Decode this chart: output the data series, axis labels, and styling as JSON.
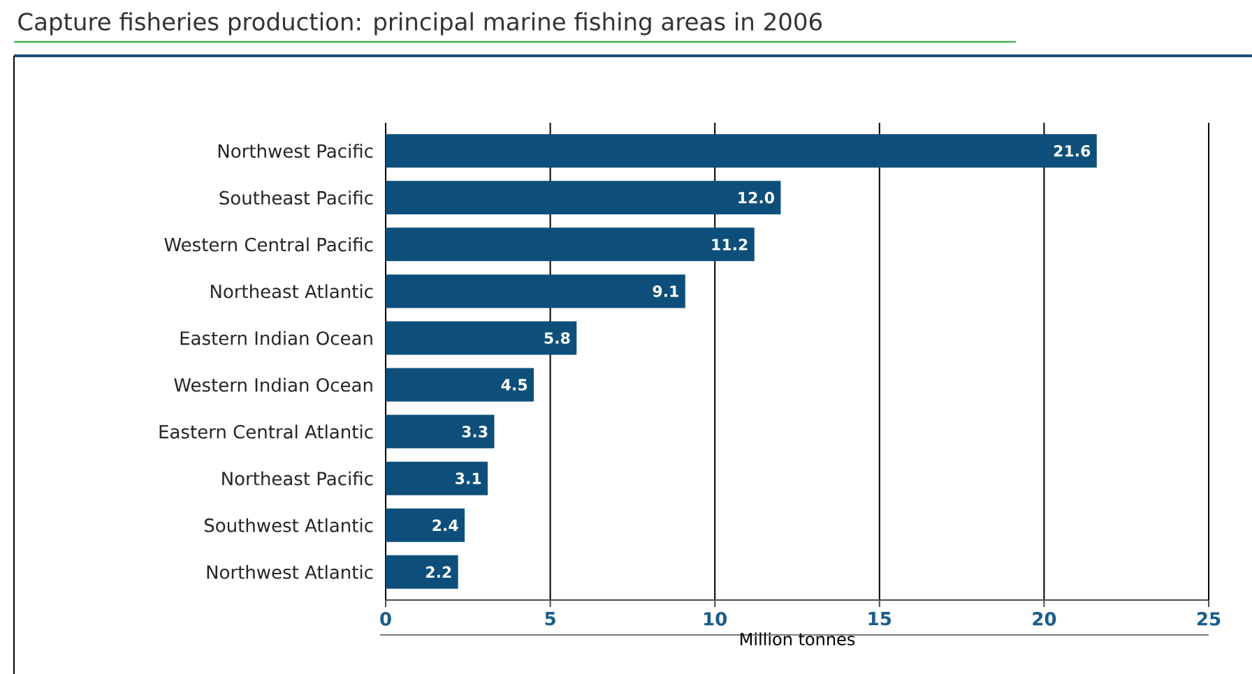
{
  "chart_data": {
    "type": "bar",
    "orientation": "horizontal",
    "title": "Capture fisheries production: principal marine fishing areas in 2006",
    "xlabel": "Million tonnes",
    "categories": [
      "Northwest Pacific",
      "Southeast Pacific",
      "Western Central Pacific",
      "Northeast Atlantic",
      "Eastern Indian Ocean",
      "Western Indian Ocean",
      "Eastern Central Atlantic",
      "Northeast Pacific",
      "Southwest Atlantic",
      "Northwest Atlantic"
    ],
    "values": [
      21.6,
      12.0,
      11.2,
      9.1,
      5.8,
      4.5,
      3.3,
      3.1,
      2.4,
      2.2
    ],
    "value_labels": [
      "21.6",
      "12.0",
      "11.2",
      "9.1",
      "5.8",
      "4.5",
      "3.3",
      "3.1",
      "2.4",
      "2.2"
    ],
    "color": "#0d4f7a",
    "xlim": [
      0,
      25
    ],
    "xticks": [
      0,
      5,
      10,
      15,
      20,
      25
    ],
    "grid": "x"
  }
}
